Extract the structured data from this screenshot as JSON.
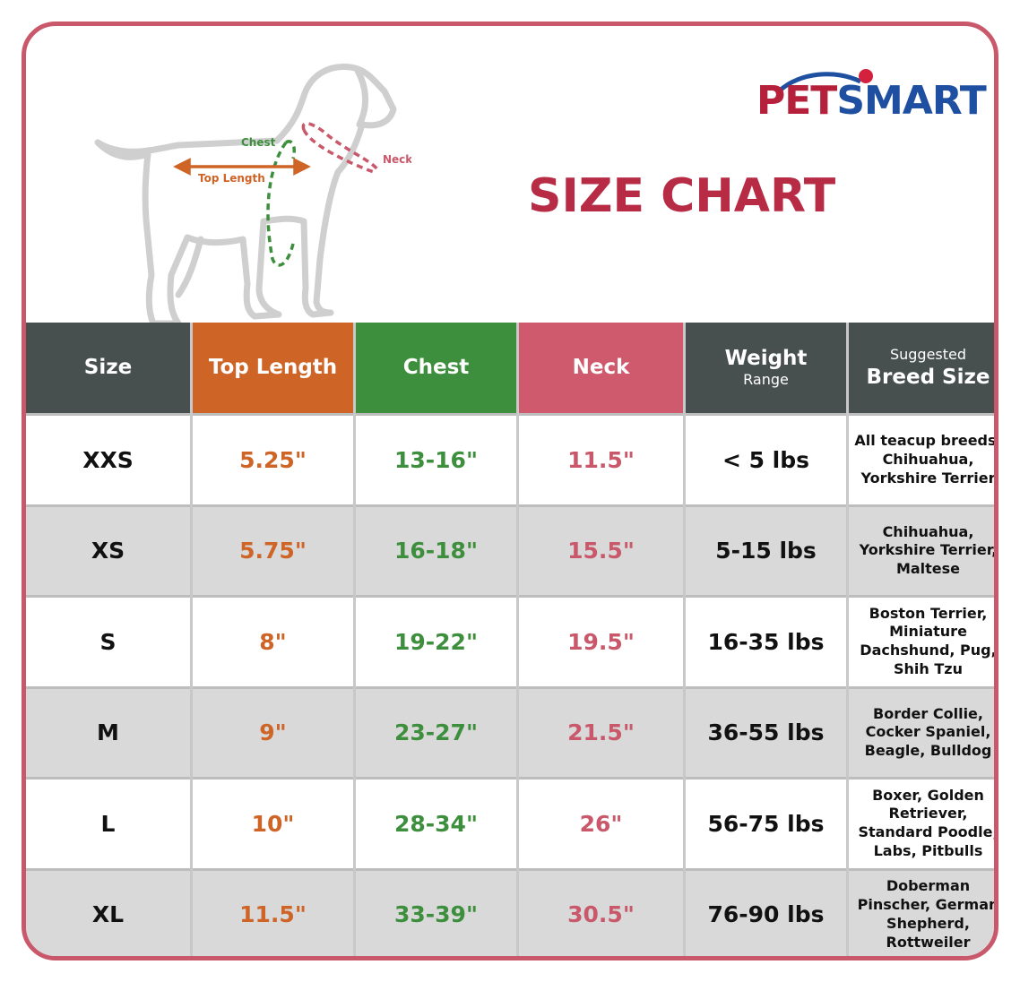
{
  "brand": {
    "logo_text_1": "PET",
    "logo_text_2": "SMART"
  },
  "title": "SIZE CHART",
  "diagram": {
    "chest_label": "Chest",
    "neck_label": "Neck",
    "top_length_label": "Top Length"
  },
  "colors": {
    "top_length": "#cf6427",
    "chest": "#3d8f3d",
    "neck": "#c9586b",
    "header_dark": "#474f4f",
    "border": "#c9586b",
    "title": "#b72b45"
  },
  "table": {
    "headers": {
      "size": "Size",
      "top_length": "Top Length",
      "chest": "Chest",
      "neck": "Neck",
      "weight": "Weight",
      "weight_sub": "Range",
      "breed_sub": "Suggested",
      "breed": "Breed Size"
    },
    "rows": [
      {
        "size": "XXS",
        "top_length": "5.25\"",
        "chest": "13-16\"",
        "neck": "11.5\"",
        "weight": "< 5 lbs",
        "breed": "All teacup breeds, Chihuahua, Yorkshire Terrier"
      },
      {
        "size": "XS",
        "top_length": "5.75\"",
        "chest": "16-18\"",
        "neck": "15.5\"",
        "weight": "5-15 lbs",
        "breed": "Chihuahua, Yorkshire Terrier, Maltese"
      },
      {
        "size": "S",
        "top_length": "8\"",
        "chest": "19-22\"",
        "neck": "19.5\"",
        "weight": "16-35 lbs",
        "breed": "Boston Terrier, Miniature Dachshund, Pug, Shih Tzu"
      },
      {
        "size": "M",
        "top_length": "9\"",
        "chest": "23-27\"",
        "neck": "21.5\"",
        "weight": "36-55 lbs",
        "breed": "Border Collie, Cocker Spaniel, Beagle, Bulldog"
      },
      {
        "size": "L",
        "top_length": "10\"",
        "chest": "28-34\"",
        "neck": "26\"",
        "weight": "56-75 lbs",
        "breed": "Boxer, Golden Retriever, Standard Poodle, Labs, Pitbulls"
      },
      {
        "size": "XL",
        "top_length": "11.5\"",
        "chest": "33-39\"",
        "neck": "30.5\"",
        "weight": "76-90 lbs",
        "breed": "Doberman Pinscher, German Shepherd, Rottweiler"
      }
    ]
  }
}
